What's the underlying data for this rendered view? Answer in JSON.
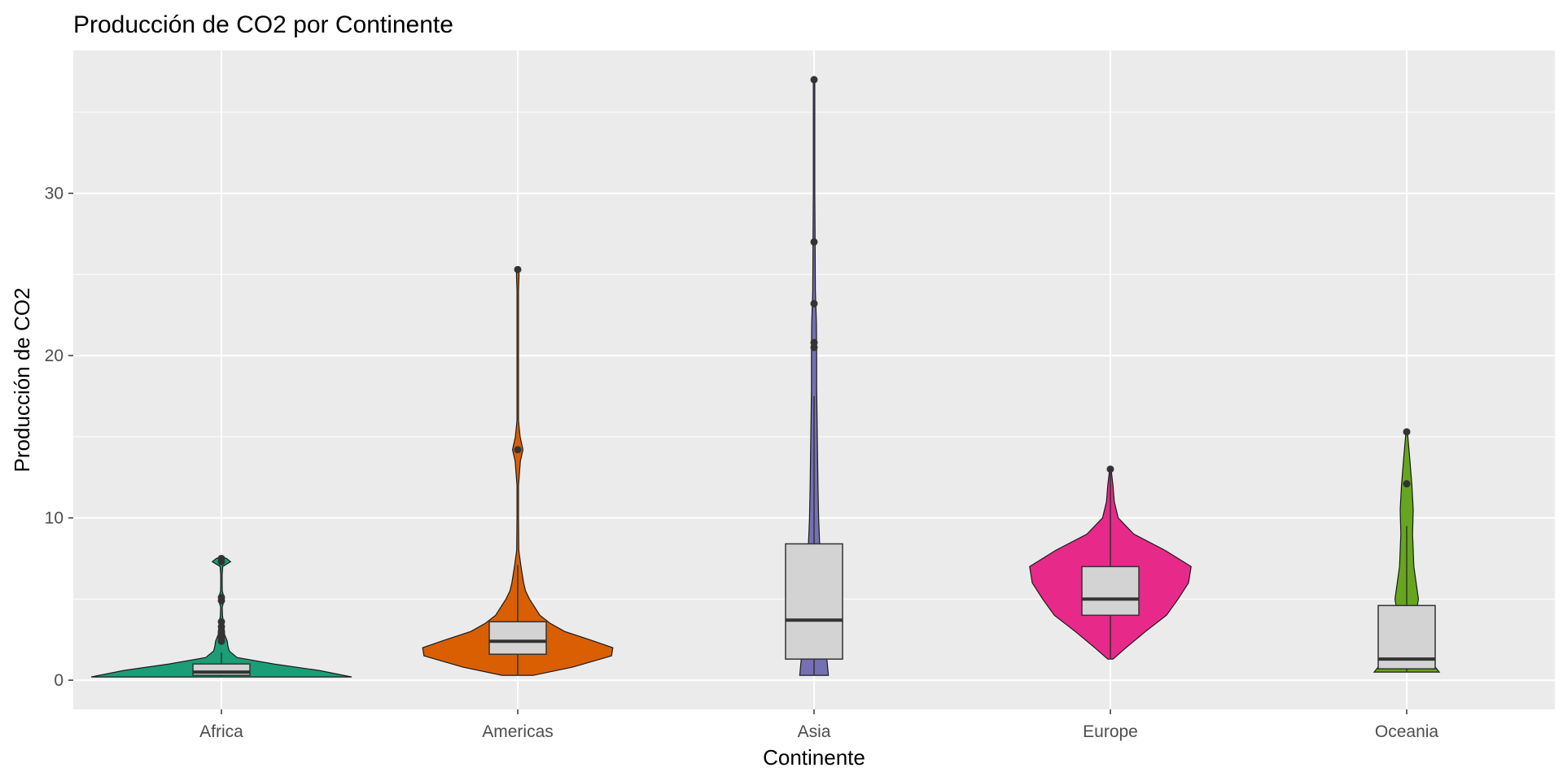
{
  "chart_data": {
    "type": "violin",
    "title": "Producción de CO2 por Continente",
    "xlabel": "Continente",
    "ylabel": "Producción de CO2",
    "ylim": [
      -1.8,
      38.8
    ],
    "y_ticks": [
      0,
      10,
      20,
      30
    ],
    "grid": true,
    "legend": "none",
    "categories": [
      "Africa",
      "Americas",
      "Asia",
      "Europe",
      "Oceania"
    ],
    "series": [
      {
        "category": "Africa",
        "color": "#1B9E77",
        "min": 0.2,
        "q1": 0.3,
        "median": 0.5,
        "q3": 1.0,
        "max": 1.7,
        "outliers": [
          2.4,
          2.6,
          2.8,
          3.0,
          3.3,
          3.6,
          4.9,
          5.1,
          7.3,
          7.5
        ],
        "density": [
          [
            0.2,
            1.0
          ],
          [
            0.6,
            0.75
          ],
          [
            1.0,
            0.4
          ],
          [
            1.4,
            0.12
          ],
          [
            1.8,
            0.06
          ],
          [
            2.1,
            0.05
          ],
          [
            2.4,
            0.045
          ],
          [
            2.8,
            0.025
          ],
          [
            3.2,
            0.02
          ],
          [
            3.6,
            0.015
          ],
          [
            4.0,
            0.008
          ],
          [
            4.5,
            0.006
          ],
          [
            4.9,
            0.02
          ],
          [
            5.1,
            0.02
          ],
          [
            5.5,
            0.006
          ],
          [
            6.0,
            0.004
          ],
          [
            6.5,
            0.004
          ],
          [
            7.0,
            0.01
          ],
          [
            7.3,
            0.07
          ],
          [
            7.5,
            0.04
          ],
          [
            7.6,
            0.0
          ]
        ]
      },
      {
        "category": "Americas",
        "color": "#D95F02",
        "min": 0.3,
        "q1": 1.6,
        "median": 2.4,
        "q3": 3.6,
        "max": 7.1,
        "outliers": [
          14.2,
          25.3
        ],
        "density": [
          [
            0.3,
            0.12
          ],
          [
            0.8,
            0.42
          ],
          [
            1.5,
            0.72
          ],
          [
            2.0,
            0.73
          ],
          [
            2.5,
            0.55
          ],
          [
            3.0,
            0.36
          ],
          [
            3.5,
            0.25
          ],
          [
            4.0,
            0.17
          ],
          [
            4.5,
            0.13
          ],
          [
            5.0,
            0.09
          ],
          [
            5.5,
            0.06
          ],
          [
            6.0,
            0.045
          ],
          [
            6.5,
            0.035
          ],
          [
            7.0,
            0.025
          ],
          [
            8.0,
            0.008
          ],
          [
            10.0,
            0.004
          ],
          [
            12.0,
            0.005
          ],
          [
            13.5,
            0.02
          ],
          [
            14.2,
            0.04
          ],
          [
            15.0,
            0.018
          ],
          [
            16.0,
            0.005
          ],
          [
            18.0,
            0.003
          ],
          [
            20.0,
            0.003
          ],
          [
            22.0,
            0.003
          ],
          [
            24.0,
            0.005
          ],
          [
            25.0,
            0.01
          ],
          [
            25.3,
            0.0
          ]
        ]
      },
      {
        "category": "Asia",
        "color": "#7570B3",
        "min": 0.3,
        "q1": 1.3,
        "median": 3.7,
        "q3": 8.4,
        "max": 17.5,
        "outliers": [
          20.5,
          20.8,
          23.2,
          27.0,
          37.0
        ],
        "density": [
          [
            0.3,
            0.11
          ],
          [
            2.0,
            0.09
          ],
          [
            4.0,
            0.08
          ],
          [
            6.0,
            0.06
          ],
          [
            8.0,
            0.045
          ],
          [
            10.0,
            0.035
          ],
          [
            12.0,
            0.03
          ],
          [
            15.0,
            0.025
          ],
          [
            18.0,
            0.02
          ],
          [
            20.0,
            0.02
          ],
          [
            22.0,
            0.018
          ],
          [
            24.0,
            0.01
          ],
          [
            27.0,
            0.008
          ],
          [
            30.0,
            0.005
          ],
          [
            33.0,
            0.004
          ],
          [
            37.0,
            0.0
          ]
        ]
      },
      {
        "category": "Europe",
        "color": "#E7298A",
        "min": 1.3,
        "q1": 4.0,
        "median": 5.0,
        "q3": 7.0,
        "max": 13.0,
        "outliers": [
          13.0
        ],
        "density": [
          [
            1.3,
            0.02
          ],
          [
            2.0,
            0.12
          ],
          [
            3.0,
            0.27
          ],
          [
            4.0,
            0.43
          ],
          [
            5.0,
            0.52
          ],
          [
            6.0,
            0.6
          ],
          [
            7.0,
            0.62
          ],
          [
            8.0,
            0.42
          ],
          [
            9.0,
            0.18
          ],
          [
            10.0,
            0.06
          ],
          [
            11.0,
            0.03
          ],
          [
            12.0,
            0.02
          ],
          [
            13.0,
            0.0
          ]
        ]
      },
      {
        "category": "Oceania",
        "color": "#66A61E",
        "min": 0.5,
        "q1": 0.7,
        "median": 1.3,
        "q3": 4.6,
        "max": 9.5,
        "outliers": [
          12.1,
          15.3
        ],
        "density": [
          [
            0.5,
            0.25
          ],
          [
            1.0,
            0.2
          ],
          [
            2.0,
            0.12
          ],
          [
            3.0,
            0.1
          ],
          [
            4.0,
            0.07
          ],
          [
            5.0,
            0.09
          ],
          [
            7.0,
            0.055
          ],
          [
            9.0,
            0.045
          ],
          [
            10.5,
            0.05
          ],
          [
            12.0,
            0.04
          ],
          [
            13.5,
            0.025
          ],
          [
            15.3,
            0.0
          ]
        ]
      }
    ]
  }
}
